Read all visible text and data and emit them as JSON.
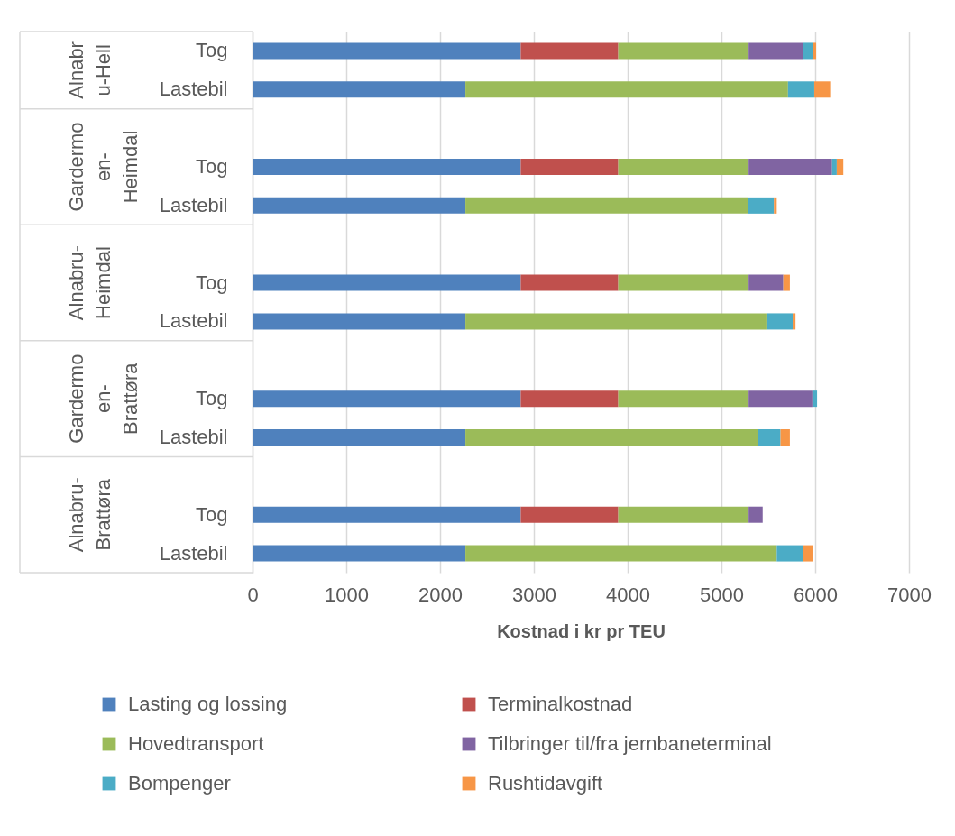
{
  "chart_data": {
    "type": "bar",
    "orientation": "horizontal",
    "stacked": true,
    "xlabel": "Kostnad i kr pr TEU",
    "categories": [
      "Tog",
      "Lastebil",
      null,
      "Tog",
      "Lastebil",
      null,
      "Tog",
      "Lastebil",
      null,
      "Tog",
      "Lastebil",
      null,
      "Tog",
      "Lastebil"
    ],
    "annotations": [
      "Alnabru-Hell",
      "Gardermoen-Heimdal",
      "Alnabru-Heimdal",
      "Gardermoen-Brattøra",
      "Alnabru-Brattøra"
    ],
    "series": [
      {
        "name": "Lasting og lossing",
        "color": "#4f81bd",
        "values": [
          2860,
          2270,
          null,
          2860,
          2270,
          null,
          2860,
          2270,
          null,
          2860,
          2270,
          null,
          2860,
          2270
        ]
      },
      {
        "name": "Terminalkostnad",
        "color": "#c0504d",
        "values": [
          1040,
          null,
          null,
          1040,
          null,
          null,
          1040,
          null,
          null,
          1040,
          null,
          null,
          1040,
          null
        ]
      },
      {
        "name": "Hovedtransport",
        "color": "#9bbb59",
        "values": [
          1390,
          3440,
          null,
          1390,
          3010,
          null,
          1390,
          3210,
          null,
          1390,
          3120,
          null,
          1390,
          3320
        ]
      },
      {
        "name": "Tilbringer til/fra jernbaneterminal",
        "color": "#8064a2",
        "values": [
          580,
          null,
          null,
          890,
          null,
          null,
          370,
          null,
          null,
          680,
          null,
          null,
          150,
          null
        ]
      },
      {
        "name": "Bompenger",
        "color": "#4bacc6",
        "values": [
          110,
          280,
          null,
          50,
          280,
          null,
          null,
          280,
          null,
          50,
          240,
          null,
          null,
          280
        ]
      },
      {
        "name": "Rushtidavgift",
        "color": "#f79646",
        "values": [
          30,
          170,
          null,
          70,
          30,
          null,
          70,
          30,
          null,
          null,
          100,
          null,
          null,
          110
        ]
      }
    ],
    "xlim": [
      0,
      7000
    ],
    "xticks": [
      0,
      1000,
      2000,
      3000,
      4000,
      5000,
      6000,
      7000
    ],
    "grid": "x",
    "legend": "bottom"
  }
}
